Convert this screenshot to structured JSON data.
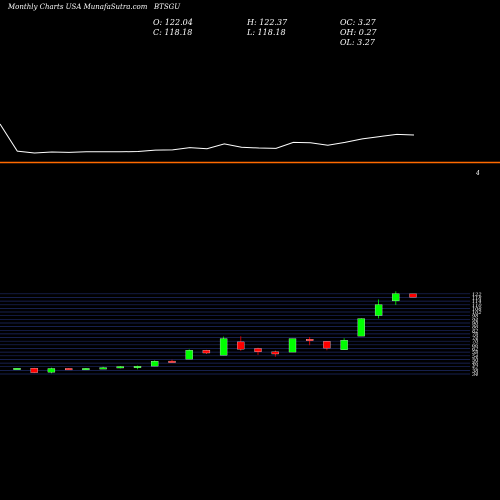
{
  "header": {
    "site_text": "Monthly Charts USA  MunafaSutra.com",
    "ticker": "BTSGU"
  },
  "ohlc": {
    "open": "O: 122.04",
    "high": "H: 122.37",
    "oc": "OC: 3.27",
    "close": "C: 118.18",
    "low": "L: 118.18",
    "oh": "OH: 0.27",
    "ol": "OL: 3.27"
  },
  "colors": {
    "background": "#000000",
    "up": "#00ff00",
    "down": "#ff0000",
    "line": "#ffffff",
    "separator": "#ff6a00",
    "grid": "#1e2a66"
  },
  "chart_data": {
    "type": "candlestick",
    "volume_label": "4",
    "price_axis_labels": [
      "122",
      "118",
      "114",
      "110",
      "106",
      "102",
      "98",
      "94",
      "90",
      "86",
      "82",
      "78",
      "74",
      "70",
      "66",
      "62",
      "58",
      "54",
      "50",
      "46",
      "42",
      "38",
      "34"
    ],
    "price_line": [
      116,
      102,
      101,
      101.5,
      101.3,
      101.6,
      101.6,
      101.6,
      101.8,
      102.5,
      102.6,
      103.8,
      103.2,
      105.7,
      104,
      103.6,
      103.4,
      106.5,
      106.3,
      105,
      106.5,
      108.3,
      109.5,
      110.6,
      110.3
    ],
    "candles": [
      {
        "open": 40.0,
        "high": 40.6,
        "low": 39.4,
        "close": 40.4
      },
      {
        "open": 40.4,
        "high": 40.8,
        "low": 35.0,
        "close": 35.6
      },
      {
        "open": 35.8,
        "high": 41.0,
        "low": 34.8,
        "close": 40.0
      },
      {
        "open": 40.2,
        "high": 40.6,
        "low": 38.6,
        "close": 39.0
      },
      {
        "open": 39.2,
        "high": 40.6,
        "low": 38.8,
        "close": 40.2
      },
      {
        "open": 40.4,
        "high": 42.0,
        "low": 39.8,
        "close": 41.0
      },
      {
        "open": 41.0,
        "high": 42.8,
        "low": 40.2,
        "close": 42.2
      },
      {
        "open": 41.8,
        "high": 43.2,
        "low": 39.2,
        "close": 42.4
      },
      {
        "open": 42.6,
        "high": 49.0,
        "low": 42.6,
        "close": 48.0
      },
      {
        "open": 48.2,
        "high": 49.6,
        "low": 46.6,
        "close": 47.8
      },
      {
        "open": 50.2,
        "high": 61.0,
        "low": 50.2,
        "close": 60.0
      },
      {
        "open": 60.0,
        "high": 60.4,
        "low": 56.0,
        "close": 57.0
      },
      {
        "open": 54.6,
        "high": 75.0,
        "low": 54.6,
        "close": 72.8
      },
      {
        "open": 69.2,
        "high": 75.4,
        "low": 59.6,
        "close": 61.2
      },
      {
        "open": 62.0,
        "high": 62.8,
        "low": 55.0,
        "close": 58.4
      },
      {
        "open": 58.4,
        "high": 59.8,
        "low": 53.0,
        "close": 56.0
      },
      {
        "open": 58.0,
        "high": 73.0,
        "low": 58.0,
        "close": 72.8
      },
      {
        "open": 72.2,
        "high": 74.6,
        "low": 65.6,
        "close": 71.0
      },
      {
        "open": 69.8,
        "high": 70.2,
        "low": 60.0,
        "close": 62.4
      },
      {
        "open": 60.6,
        "high": 73.2,
        "low": 60.6,
        "close": 71.0
      },
      {
        "open": 75.6,
        "high": 95.2,
        "low": 75.6,
        "close": 94.8
      },
      {
        "open": 98.2,
        "high": 115.8,
        "low": 95.0,
        "close": 110.2
      },
      {
        "open": 114.2,
        "high": 124.8,
        "low": 110.0,
        "close": 122.2
      },
      {
        "open": 122.04,
        "high": 122.37,
        "low": 118.18,
        "close": 118.18
      }
    ]
  }
}
